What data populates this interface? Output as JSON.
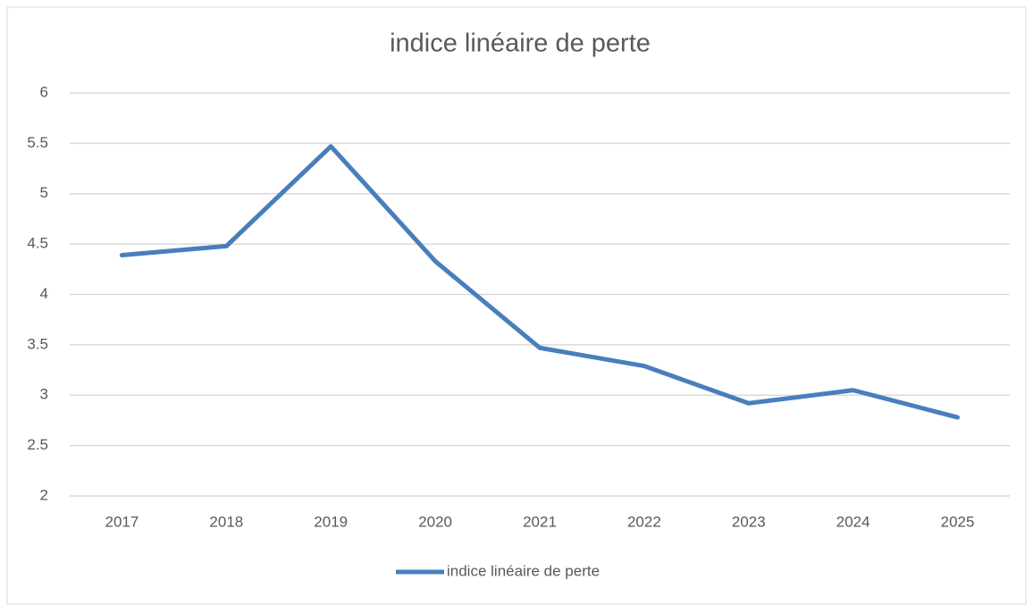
{
  "chart_data": {
    "type": "line",
    "title": "indice linéaire de perte",
    "categories": [
      "2017",
      "2018",
      "2019",
      "2020",
      "2021",
      "2022",
      "2023",
      "2024",
      "2025"
    ],
    "series": [
      {
        "name": "indice linéaire de perte",
        "color": "#4a7ebb",
        "values": [
          4.39,
          4.48,
          5.47,
          4.33,
          3.47,
          3.29,
          2.92,
          3.05,
          2.78
        ]
      }
    ],
    "ylim": [
      2,
      6
    ],
    "yticks": [
      2,
      2.5,
      3,
      3.5,
      4,
      4.5,
      5,
      5.5,
      6
    ],
    "grid": true,
    "legend": "bottom"
  }
}
